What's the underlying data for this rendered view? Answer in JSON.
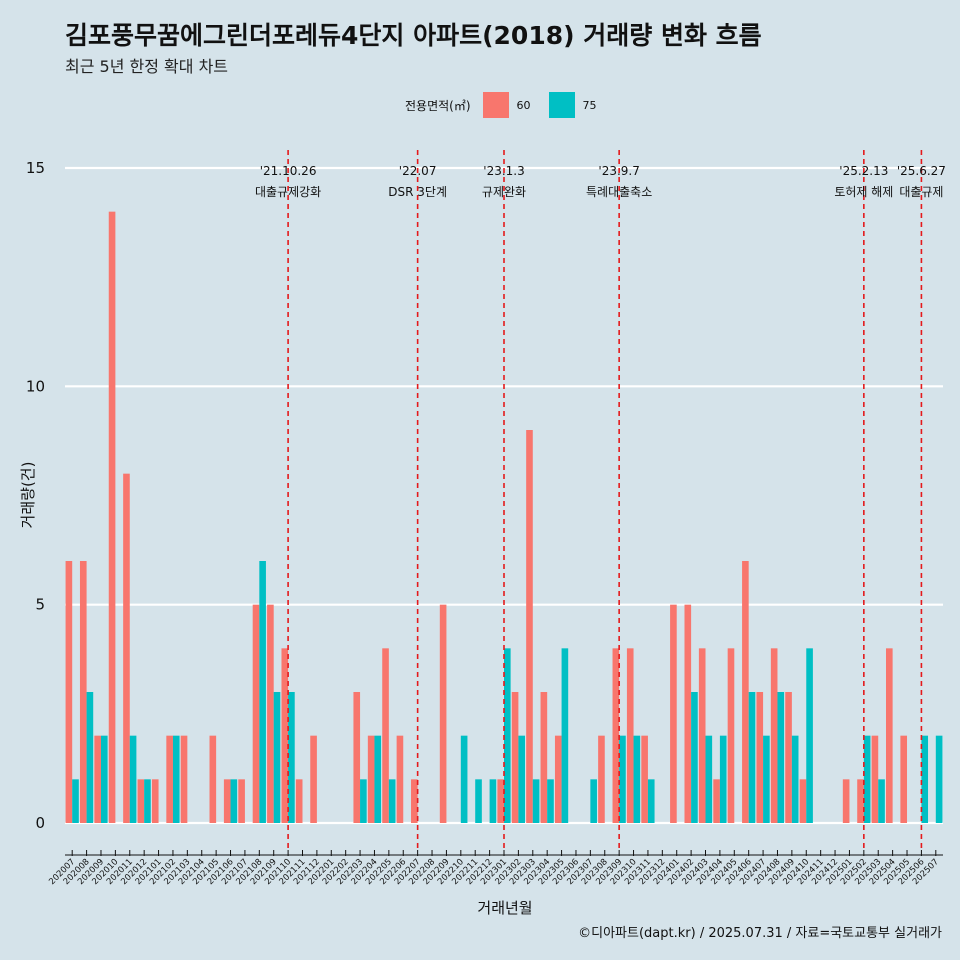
{
  "title": "김포풍무꿈에그린더포레듀4단지 아파트(2018) 거래량 변화 흐름",
  "subtitle": "최근 5년 한정 확대 차트",
  "caption": "©디아파트(dapt.kr) / 2025.07.31 / 자료=국토교통부 실거래가",
  "legend": {
    "title": "전용면적(㎡)",
    "items": [
      {
        "label": "60",
        "color": "#f8766d"
      },
      {
        "label": "75",
        "color": "#00bfc4"
      }
    ]
  },
  "chart_data": {
    "type": "bar",
    "xlabel": "거래년월",
    "ylabel": "거래량(건)",
    "ylim": [
      0,
      15
    ],
    "yticks": [
      0,
      5,
      10,
      15
    ],
    "grid": true,
    "legend_position": "top",
    "categories": [
      "202007",
      "202008",
      "202009",
      "202010",
      "202011",
      "202012",
      "202101",
      "202102",
      "202103",
      "202104",
      "202105",
      "202106",
      "202107",
      "202108",
      "202109",
      "202110",
      "202111",
      "202112",
      "202201",
      "202202",
      "202203",
      "202204",
      "202205",
      "202206",
      "202207",
      "202208",
      "202209",
      "202210",
      "202211",
      "202212",
      "202301",
      "202302",
      "202303",
      "202304",
      "202305",
      "202306",
      "202307",
      "202308",
      "202309",
      "202310",
      "202311",
      "202312",
      "202401",
      "202402",
      "202403",
      "202404",
      "202405",
      "202406",
      "202407",
      "202408",
      "202409",
      "202410",
      "202411",
      "202412",
      "202501",
      "202502",
      "202503",
      "202504",
      "202505",
      "202506",
      "202507"
    ],
    "series": [
      {
        "name": "60",
        "color": "#f8766d",
        "values": [
          6,
          6,
          2,
          14,
          8,
          1,
          1,
          2,
          2,
          0,
          2,
          1,
          1,
          5,
          5,
          4,
          1,
          2,
          0,
          0,
          3,
          2,
          4,
          2,
          1,
          0,
          5,
          0,
          0,
          0,
          1,
          3,
          9,
          3,
          2,
          0,
          0,
          2,
          4,
          4,
          2,
          0,
          5,
          5,
          4,
          1,
          4,
          6,
          3,
          4,
          3,
          1,
          0,
          0,
          1,
          1,
          2,
          4,
          2,
          0,
          0
        ]
      },
      {
        "name": "75",
        "color": "#00bfc4",
        "values": [
          1,
          3,
          2,
          0,
          2,
          1,
          0,
          2,
          0,
          0,
          0,
          1,
          0,
          6,
          3,
          3,
          0,
          0,
          0,
          0,
          1,
          2,
          1,
          0,
          0,
          0,
          0,
          2,
          1,
          1,
          4,
          2,
          1,
          1,
          4,
          0,
          1,
          0,
          2,
          2,
          1,
          0,
          0,
          3,
          2,
          2,
          0,
          3,
          2,
          3,
          2,
          4,
          0,
          0,
          0,
          2,
          1,
          0,
          0,
          2,
          2
        ]
      }
    ],
    "annotations": [
      {
        "x": "202110",
        "date": "'21.10.26",
        "label": "대출규제강화"
      },
      {
        "x": "202207",
        "date": "'22.07",
        "label": "DSR 3단계"
      },
      {
        "x": "202301",
        "date": "'23.1.3",
        "label": "규제완화"
      },
      {
        "x": "202309",
        "date": "'23.9.7",
        "label": "특례대출축소"
      },
      {
        "x": "202502",
        "date": "'25.2.13",
        "label": "토허제 해제"
      },
      {
        "x": "202506",
        "date": "'25.6.27",
        "label": "대출규제"
      }
    ]
  }
}
